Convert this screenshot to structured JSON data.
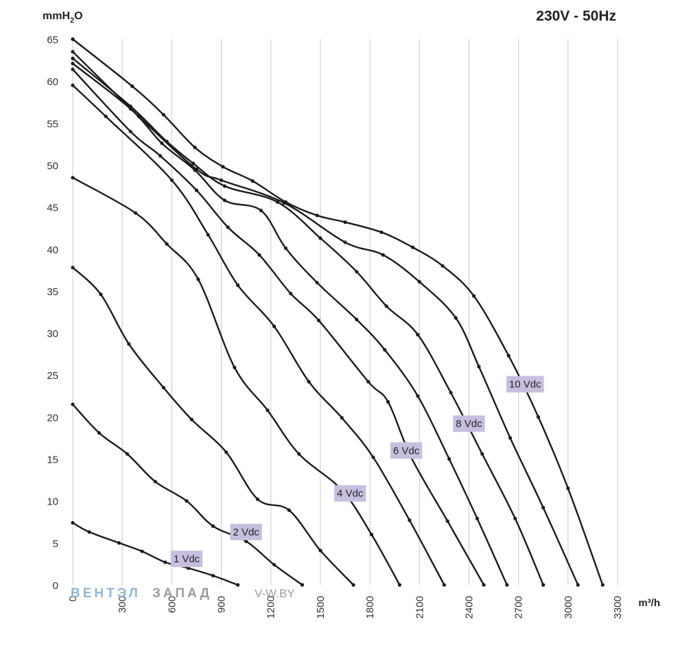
{
  "chart_data": {
    "type": "line",
    "title": "230V - 50Hz",
    "ylabel": "mmH2O",
    "ylabel_main": "mmH",
    "ylabel_sub": "2",
    "ylabel_tail": "O",
    "xlabel": "m³/h",
    "xlim": [
      0,
      3300
    ],
    "ylim": [
      0,
      65
    ],
    "xticks": [
      0,
      300,
      600,
      900,
      1200,
      1500,
      1800,
      2100,
      2400,
      2700,
      3000,
      3300
    ],
    "yticks": [
      0,
      5,
      10,
      15,
      20,
      25,
      30,
      35,
      40,
      45,
      50,
      55,
      60,
      65
    ],
    "grid": "vertical",
    "series": [
      {
        "name": "1 Vdc",
        "points": [
          [
            0,
            7.4
          ],
          [
            100,
            6.3
          ],
          [
            280,
            5.0
          ],
          [
            420,
            4.0
          ],
          [
            560,
            2.7
          ],
          [
            700,
            2.0
          ],
          [
            850,
            1.1
          ],
          [
            1000,
            0.0
          ]
        ]
      },
      {
        "name": "2 Vdc",
        "points": [
          [
            0,
            21.5
          ],
          [
            160,
            18.1
          ],
          [
            330,
            15.6
          ],
          [
            500,
            12.3
          ],
          [
            690,
            10.0
          ],
          [
            850,
            7.0
          ],
          [
            1050,
            5.2
          ],
          [
            1220,
            2.4
          ],
          [
            1390,
            0.0
          ]
        ]
      },
      {
        "name": "4 Vdc",
        "points": [
          [
            0,
            37.8
          ],
          [
            170,
            34.6
          ],
          [
            340,
            28.7
          ],
          [
            550,
            23.5
          ],
          [
            720,
            19.7
          ],
          [
            930,
            15.8
          ],
          [
            1120,
            10.2
          ],
          [
            1310,
            8.9
          ],
          [
            1500,
            4.1
          ],
          [
            1700,
            0.0
          ]
        ]
      },
      {
        "name": "6 Vdc",
        "points": [
          [
            0,
            48.5
          ],
          [
            380,
            44.3
          ],
          [
            570,
            40.6
          ],
          [
            760,
            36.4
          ],
          [
            980,
            25.9
          ],
          [
            1180,
            20.8
          ],
          [
            1370,
            15.6
          ],
          [
            1630,
            11.3
          ],
          [
            1810,
            6.0
          ],
          [
            1980,
            0.0
          ]
        ]
      },
      {
        "name": "8 Vdc",
        "points": [
          [
            0,
            61.4
          ],
          [
            350,
            54.0
          ],
          [
            530,
            51.1
          ],
          [
            750,
            47.0
          ],
          [
            940,
            42.6
          ],
          [
            1130,
            39.3
          ],
          [
            1320,
            34.7
          ],
          [
            1490,
            31.5
          ],
          [
            1790,
            24.2
          ],
          [
            1910,
            21.8
          ],
          [
            2050,
            15.2
          ],
          [
            2270,
            7.6
          ],
          [
            2490,
            0.0
          ]
        ]
      },
      {
        "name": "10 Vdc",
        "points": [
          [
            0,
            59.5
          ],
          [
            200,
            55.8
          ],
          [
            600,
            48.2
          ],
          [
            820,
            41.7
          ],
          [
            1000,
            35.7
          ],
          [
            1220,
            30.8
          ],
          [
            1430,
            24.2
          ],
          [
            1630,
            19.9
          ],
          [
            1820,
            15.2
          ],
          [
            2040,
            7.7
          ],
          [
            2250,
            0.0
          ]
        ]
      },
      {
        "name": "",
        "points": [
          [
            0,
            62.1
          ],
          [
            350,
            56.7
          ],
          [
            540,
            52.6
          ],
          [
            740,
            49.4
          ],
          [
            920,
            45.8
          ],
          [
            1140,
            44.6
          ],
          [
            1290,
            40.1
          ],
          [
            1480,
            36.0
          ],
          [
            1720,
            31.6
          ],
          [
            1890,
            28.0
          ],
          [
            2090,
            22.5
          ],
          [
            2280,
            15.0
          ],
          [
            2450,
            7.9
          ],
          [
            2630,
            0.0
          ]
        ]
      },
      {
        "name": "",
        "points": [
          [
            0,
            62.7
          ],
          [
            350,
            57.0
          ],
          [
            570,
            52.8
          ],
          [
            730,
            50.2
          ],
          [
            920,
            47.5
          ],
          [
            1240,
            45.6
          ],
          [
            1500,
            41.3
          ],
          [
            1720,
            37.3
          ],
          [
            1900,
            33.2
          ],
          [
            2090,
            29.8
          ],
          [
            2290,
            22.9
          ],
          [
            2480,
            15.6
          ],
          [
            2680,
            7.9
          ],
          [
            2850,
            0.0
          ]
        ]
      },
      {
        "name": "",
        "points": [
          [
            0,
            63.5
          ],
          [
            400,
            55.8
          ],
          [
            750,
            49.5
          ],
          [
            900,
            48.2
          ],
          [
            1280,
            45.5
          ],
          [
            1650,
            40.8
          ],
          [
            1880,
            39.3
          ],
          [
            2100,
            36.1
          ],
          [
            2320,
            31.8
          ],
          [
            2460,
            26.0
          ],
          [
            2650,
            17.5
          ],
          [
            2850,
            9.2
          ],
          [
            3060,
            0.0
          ]
        ]
      },
      {
        "name": "",
        "points": [
          [
            0,
            65.0
          ],
          [
            360,
            59.4
          ],
          [
            550,
            56.0
          ],
          [
            740,
            52.1
          ],
          [
            910,
            49.8
          ],
          [
            1090,
            48.1
          ],
          [
            1290,
            45.6
          ],
          [
            1480,
            44.0
          ],
          [
            1650,
            43.2
          ],
          [
            1870,
            42.0
          ],
          [
            2060,
            40.2
          ],
          [
            2240,
            38.0
          ],
          [
            2430,
            34.4
          ],
          [
            2640,
            27.3
          ],
          [
            2820,
            20.0
          ],
          [
            3000,
            11.5
          ],
          [
            3210,
            0.0
          ]
        ]
      }
    ],
    "labels": [
      {
        "text": "1 Vdc",
        "x": 690,
        "y": 3.1
      },
      {
        "text": "2 Vdc",
        "x": 1050,
        "y": 6.3
      },
      {
        "text": "4 Vdc",
        "x": 1680,
        "y": 10.9
      },
      {
        "text": "6 Vdc",
        "x": 2020,
        "y": 16.0
      },
      {
        "text": "8 Vdc",
        "x": 2400,
        "y": 19.2
      },
      {
        "text": "10 Vdc",
        "x": 2740,
        "y": 23.9
      }
    ]
  },
  "watermark": {
    "brand_a": "ВЕНТЭЛ",
    "brand_b": "ЗАПАД",
    "site": "V-W.BY"
  }
}
